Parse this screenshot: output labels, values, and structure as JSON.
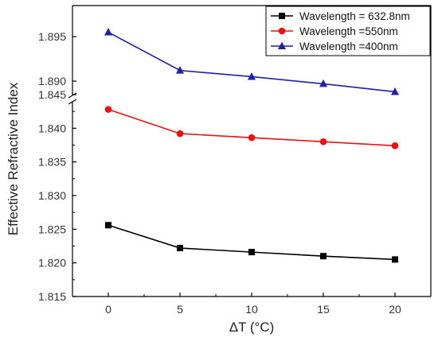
{
  "chart_data": {
    "type": "line",
    "xlabel": "ΔT (°C)",
    "ylabel": "Effective Refractive Index",
    "x": [
      0,
      5,
      10,
      15,
      20
    ],
    "x_ticks": [
      "0",
      "5",
      "10",
      "15",
      "20"
    ],
    "xlim": [
      -2.5,
      22.5
    ],
    "y_axis_break": true,
    "y_segments": [
      {
        "ylim": [
          1.815,
          1.845
        ],
        "ticks": [
          "1.815",
          "1.820",
          "1.825",
          "1.830",
          "1.835",
          "1.840",
          "1.845"
        ]
      },
      {
        "ylim": [
          1.8875,
          1.8985
        ],
        "ticks": [
          "1.890",
          "1.895"
        ]
      }
    ],
    "legend_position": "top-right",
    "grid": false,
    "series": [
      {
        "name": "Wavelength = 632.8nm",
        "color": "#000000",
        "marker": "square",
        "values": [
          1.8256,
          1.8222,
          1.8216,
          1.821,
          1.8205
        ]
      },
      {
        "name": "Wavelength =550nm",
        "color": "#e8110f",
        "marker": "circle",
        "values": [
          1.8428,
          1.8392,
          1.8386,
          1.838,
          1.8374
        ]
      },
      {
        "name": "Wavelength =400nm",
        "color": "#1f1fa8",
        "marker": "triangle",
        "values": [
          1.8955,
          1.8912,
          1.8905,
          1.8897,
          1.8888
        ]
      }
    ]
  }
}
